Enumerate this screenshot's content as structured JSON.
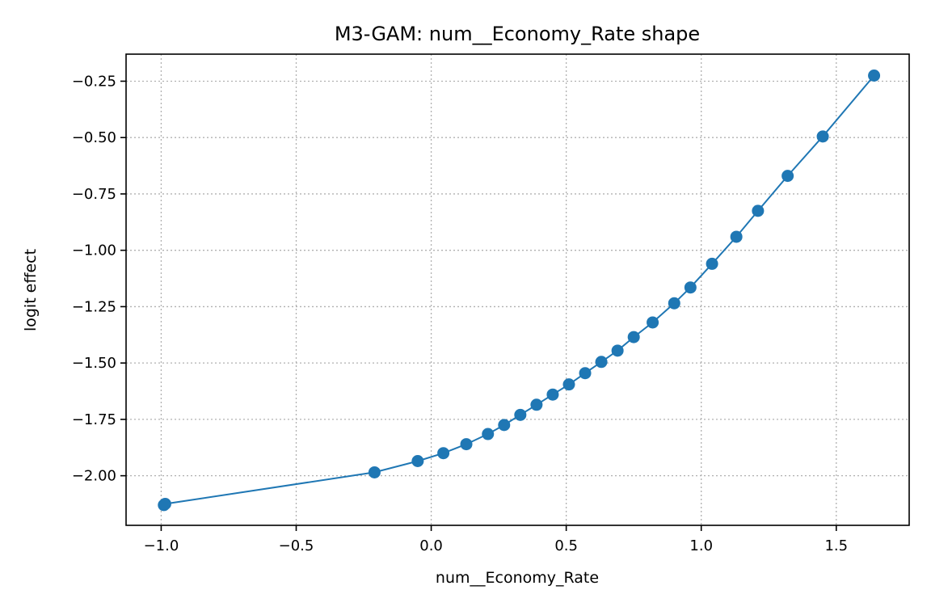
{
  "chart_data": {
    "type": "line",
    "title": "M3-GAM: num__Economy_Rate shape",
    "xlabel": "num__Economy_Rate",
    "ylabel": "logit effect",
    "xlim": [
      -1.13,
      1.77
    ],
    "ylim": [
      -2.22,
      -0.13
    ],
    "xticks": [
      -1.0,
      -0.5,
      0.0,
      0.5,
      1.0,
      1.5
    ],
    "xtick_labels": [
      "−1.0",
      "−0.5",
      "0.0",
      "0.5",
      "1.0",
      "1.5"
    ],
    "yticks": [
      -0.25,
      -0.5,
      -0.75,
      -1.0,
      -1.25,
      -1.5,
      -1.75,
      -2.0
    ],
    "ytick_labels": [
      "−0.25",
      "−0.50",
      "−0.75",
      "−1.00",
      "−1.25",
      "−1.50",
      "−1.75",
      "−2.00"
    ],
    "grid": true,
    "color": "#1f77b4",
    "series": [
      {
        "x": [
          -0.99,
          -0.985,
          -0.21,
          -0.05,
          0.045,
          0.13,
          0.21,
          0.27,
          0.33,
          0.39,
          0.45,
          0.51,
          0.57,
          0.63,
          0.69,
          0.75,
          0.82,
          0.9,
          0.96,
          1.04,
          1.13,
          1.21,
          1.32,
          1.45,
          1.64
        ],
        "y": [
          -2.13,
          -2.125,
          -1.985,
          -1.935,
          -1.9,
          -1.86,
          -1.815,
          -1.775,
          -1.73,
          -1.685,
          -1.64,
          -1.595,
          -1.545,
          -1.495,
          -1.445,
          -1.385,
          -1.32,
          -1.235,
          -1.165,
          -1.06,
          -0.94,
          -0.825,
          -0.67,
          -0.495,
          -0.225
        ]
      }
    ]
  }
}
